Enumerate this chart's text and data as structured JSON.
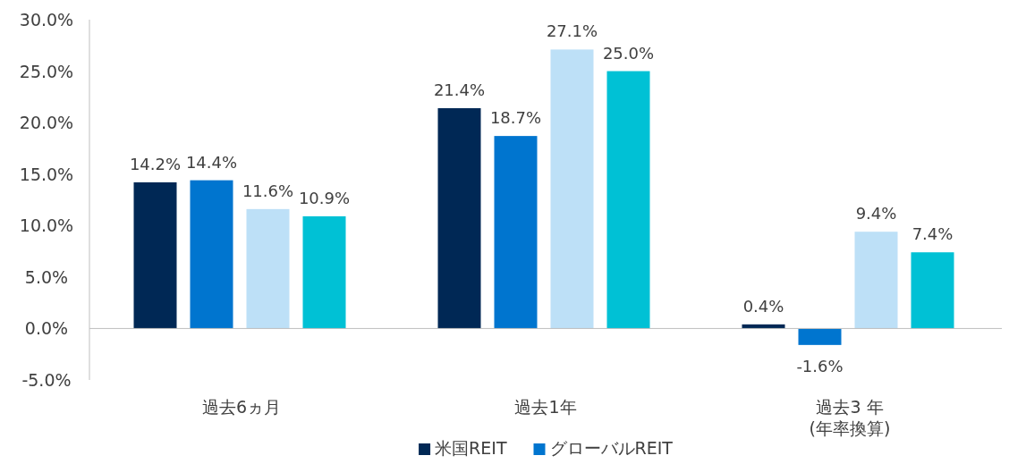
{
  "chart_data": {
    "type": "bar",
    "categories": [
      "過去6ヵ月",
      "過去1年",
      "過去3 年\n(年率換算)"
    ],
    "series": [
      {
        "name": "米国REIT",
        "color": "#002855",
        "values": [
          14.2,
          21.4,
          0.4
        ],
        "value_labels": [
          "14.2%",
          "21.4%",
          "0.4%"
        ]
      },
      {
        "name": "グローバルREIT",
        "color": "#0075cf",
        "values": [
          14.4,
          18.7,
          -1.6
        ],
        "value_labels": [
          "14.4%",
          "18.7%",
          "-1.6%"
        ]
      },
      {
        "color": "#bde0f7",
        "values": [
          11.6,
          27.1,
          9.4
        ],
        "value_labels": [
          "11.6%",
          "27.1%",
          "9.4%"
        ]
      },
      {
        "color": "#00c1d5",
        "values": [
          10.9,
          25.0,
          7.4
        ],
        "value_labels": [
          "10.9%",
          "25.0%",
          "7.4%"
        ]
      }
    ],
    "ylim": [
      -5,
      30
    ],
    "yticks": [
      {
        "value": -5,
        "label": "-5.0%"
      },
      {
        "value": 0,
        "label": "0.0%"
      },
      {
        "value": 5,
        "label": "5.0%"
      },
      {
        "value": 10,
        "label": "10.0%"
      },
      {
        "value": 15,
        "label": "15.0%"
      },
      {
        "value": 20,
        "label": "20.0%"
      },
      {
        "value": 25,
        "label": "25.0%"
      },
      {
        "value": 30,
        "label": "30.0%"
      }
    ],
    "legend": "bottom"
  }
}
